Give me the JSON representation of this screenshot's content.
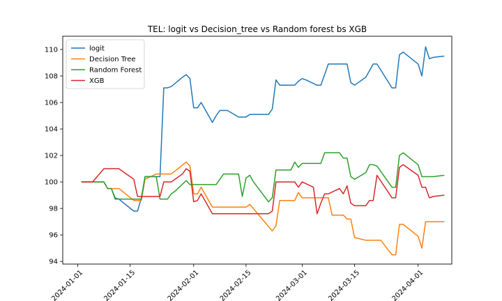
{
  "chart_data": {
    "type": "line",
    "title": "TEL: logit vs Decision_tree vs Random forest bs XGB",
    "xlabel": "",
    "ylabel": "",
    "x_range": [
      "2023-12-28",
      "2024-04-10"
    ],
    "ylim": [
      93.8,
      111.0
    ],
    "yticks": [
      94,
      96,
      98,
      100,
      102,
      104,
      106,
      108,
      110
    ],
    "xticks": [
      "2024-01-01",
      "2024-01-15",
      "2024-02-01",
      "2024-02-15",
      "2024-03-01",
      "2024-03-15",
      "2024-04-01"
    ],
    "grid": false,
    "legend_position": "top-left",
    "series": [
      {
        "name": "logit",
        "color": "#1f77b4",
        "points": [
          [
            "2024-01-02",
            100.0
          ],
          [
            "2024-01-05",
            100.0
          ],
          [
            "2024-01-08",
            100.0
          ],
          [
            "2024-01-09",
            99.5
          ],
          [
            "2024-01-10",
            99.5
          ],
          [
            "2024-01-11",
            98.8
          ],
          [
            "2024-01-12",
            98.7
          ],
          [
            "2024-01-16",
            97.8
          ],
          [
            "2024-01-17",
            97.8
          ],
          [
            "2024-01-18",
            98.8
          ],
          [
            "2024-01-19",
            100.4
          ],
          [
            "2024-01-22",
            100.4
          ],
          [
            "2024-01-23",
            100.4
          ],
          [
            "2024-01-24",
            107.1
          ],
          [
            "2024-01-25",
            107.1
          ],
          [
            "2024-01-26",
            107.2
          ],
          [
            "2024-01-29",
            107.9
          ],
          [
            "2024-01-30",
            108.1
          ],
          [
            "2024-01-31",
            107.8
          ],
          [
            "2024-02-01",
            105.6
          ],
          [
            "2024-02-02",
            105.6
          ],
          [
            "2024-02-03",
            106.0
          ],
          [
            "2024-02-06",
            104.5
          ],
          [
            "2024-02-07",
            105.0
          ],
          [
            "2024-02-08",
            105.4
          ],
          [
            "2024-02-09",
            105.4
          ],
          [
            "2024-02-10",
            105.4
          ],
          [
            "2024-02-13",
            104.9
          ],
          [
            "2024-02-14",
            104.9
          ],
          [
            "2024-02-15",
            104.9
          ],
          [
            "2024-02-16",
            105.1
          ],
          [
            "2024-02-20",
            105.1
          ],
          [
            "2024-02-21",
            105.1
          ],
          [
            "2024-02-22",
            105.5
          ],
          [
            "2024-02-23",
            107.7
          ],
          [
            "2024-02-24",
            107.3
          ],
          [
            "2024-02-27",
            107.3
          ],
          [
            "2024-02-28",
            107.3
          ],
          [
            "2024-02-29",
            107.6
          ],
          [
            "2024-03-01",
            107.8
          ],
          [
            "2024-03-02",
            107.7
          ],
          [
            "2024-03-05",
            107.3
          ],
          [
            "2024-03-06",
            107.3
          ],
          [
            "2024-03-07",
            108.1
          ],
          [
            "2024-03-08",
            108.9
          ],
          [
            "2024-03-09",
            108.9
          ],
          [
            "2024-03-12",
            108.9
          ],
          [
            "2024-03-13",
            108.9
          ],
          [
            "2024-03-14",
            107.5
          ],
          [
            "2024-03-15",
            107.3
          ],
          [
            "2024-03-18",
            107.9
          ],
          [
            "2024-03-19",
            108.4
          ],
          [
            "2024-03-20",
            108.9
          ],
          [
            "2024-03-21",
            108.9
          ],
          [
            "2024-03-25",
            107.1
          ],
          [
            "2024-03-26",
            107.1
          ],
          [
            "2024-03-27",
            109.6
          ],
          [
            "2024-03-28",
            109.8
          ],
          [
            "2024-04-01",
            108.9
          ],
          [
            "2024-04-02",
            108.0
          ],
          [
            "2024-04-03",
            110.2
          ],
          [
            "2024-04-04",
            109.3
          ],
          [
            "2024-04-05",
            109.4
          ],
          [
            "2024-04-08",
            109.5
          ]
        ]
      },
      {
        "name": "Decision Tree",
        "color": "#ff7f0e",
        "points": [
          [
            "2024-01-02",
            100.0
          ],
          [
            "2024-01-08",
            100.0
          ],
          [
            "2024-01-09",
            99.5
          ],
          [
            "2024-01-12",
            99.5
          ],
          [
            "2024-01-16",
            98.6
          ],
          [
            "2024-01-17",
            98.6
          ],
          [
            "2024-01-18",
            98.6
          ],
          [
            "2024-01-19",
            100.2
          ],
          [
            "2024-01-22",
            100.6
          ],
          [
            "2024-01-23",
            100.6
          ],
          [
            "2024-01-26",
            100.6
          ],
          [
            "2024-01-30",
            101.5
          ],
          [
            "2024-01-31",
            101.2
          ],
          [
            "2024-02-01",
            99.1
          ],
          [
            "2024-02-02",
            99.1
          ],
          [
            "2024-02-03",
            99.6
          ],
          [
            "2024-02-06",
            98.1
          ],
          [
            "2024-02-07",
            98.1
          ],
          [
            "2024-02-14",
            98.1
          ],
          [
            "2024-02-15",
            98.1
          ],
          [
            "2024-02-16",
            98.3
          ],
          [
            "2024-02-22",
            96.3
          ],
          [
            "2024-02-23",
            96.7
          ],
          [
            "2024-02-24",
            98.6
          ],
          [
            "2024-02-27",
            98.6
          ],
          [
            "2024-02-28",
            98.6
          ],
          [
            "2024-02-29",
            99.2
          ],
          [
            "2024-03-01",
            98.8
          ],
          [
            "2024-03-05",
            98.8
          ],
          [
            "2024-03-06",
            98.8
          ],
          [
            "2024-03-07",
            98.8
          ],
          [
            "2024-03-08",
            98.8
          ],
          [
            "2024-03-09",
            97.5
          ],
          [
            "2024-03-12",
            97.5
          ],
          [
            "2024-03-13",
            97.2
          ],
          [
            "2024-03-14",
            97.2
          ],
          [
            "2024-03-15",
            95.8
          ],
          [
            "2024-03-18",
            95.6
          ],
          [
            "2024-03-21",
            95.6
          ],
          [
            "2024-03-22",
            95.6
          ],
          [
            "2024-03-25",
            94.5
          ],
          [
            "2024-03-26",
            94.5
          ],
          [
            "2024-03-27",
            96.8
          ],
          [
            "2024-03-28",
            96.8
          ],
          [
            "2024-04-01",
            95.9
          ],
          [
            "2024-04-02",
            95.0
          ],
          [
            "2024-04-03",
            97.0
          ],
          [
            "2024-04-04",
            97.0
          ],
          [
            "2024-04-05",
            97.0
          ],
          [
            "2024-04-08",
            97.0
          ]
        ]
      },
      {
        "name": "Random Forest",
        "color": "#2ca02c",
        "points": [
          [
            "2024-01-02",
            100.0
          ],
          [
            "2024-01-08",
            100.0
          ],
          [
            "2024-01-09",
            99.5
          ],
          [
            "2024-01-10",
            99.5
          ],
          [
            "2024-01-11",
            98.7
          ],
          [
            "2024-01-12",
            98.7
          ],
          [
            "2024-01-16",
            98.7
          ],
          [
            "2024-01-18",
            98.7
          ],
          [
            "2024-01-19",
            100.4
          ],
          [
            "2024-01-22",
            100.4
          ],
          [
            "2024-01-23",
            98.7
          ],
          [
            "2024-01-25",
            98.7
          ],
          [
            "2024-01-26",
            99.1
          ],
          [
            "2024-01-27",
            99.3
          ],
          [
            "2024-01-30",
            100.1
          ],
          [
            "2024-01-31",
            99.8
          ],
          [
            "2024-02-01",
            99.8
          ],
          [
            "2024-02-07",
            99.8
          ],
          [
            "2024-02-09",
            100.6
          ],
          [
            "2024-02-13",
            100.6
          ],
          [
            "2024-02-14",
            98.9
          ],
          [
            "2024-02-15",
            100.3
          ],
          [
            "2024-02-16",
            100.5
          ],
          [
            "2024-02-17",
            100.0
          ],
          [
            "2024-02-21",
            98.5
          ],
          [
            "2024-02-22",
            98.8
          ],
          [
            "2024-02-23",
            100.9
          ],
          [
            "2024-02-24",
            100.9
          ],
          [
            "2024-02-27",
            100.9
          ],
          [
            "2024-02-28",
            101.5
          ],
          [
            "2024-02-29",
            101.1
          ],
          [
            "2024-03-01",
            101.4
          ],
          [
            "2024-03-05",
            101.4
          ],
          [
            "2024-03-06",
            101.4
          ],
          [
            "2024-03-07",
            102.2
          ],
          [
            "2024-03-08",
            102.2
          ],
          [
            "2024-03-11",
            102.2
          ],
          [
            "2024-03-12",
            101.8
          ],
          [
            "2024-03-13",
            101.8
          ],
          [
            "2024-03-14",
            100.4
          ],
          [
            "2024-03-15",
            100.2
          ],
          [
            "2024-03-18",
            100.7
          ],
          [
            "2024-03-19",
            101.3
          ],
          [
            "2024-03-20",
            101.3
          ],
          [
            "2024-03-21",
            101.2
          ],
          [
            "2024-03-25",
            99.6
          ],
          [
            "2024-03-26",
            99.6
          ],
          [
            "2024-03-27",
            102.0
          ],
          [
            "2024-03-28",
            102.2
          ],
          [
            "2024-04-01",
            101.3
          ],
          [
            "2024-04-02",
            100.4
          ],
          [
            "2024-04-05",
            100.4
          ],
          [
            "2024-04-08",
            100.5
          ]
        ]
      },
      {
        "name": "XGB",
        "color": "#d62728",
        "points": [
          [
            "2024-01-02",
            100.0
          ],
          [
            "2024-01-05",
            100.0
          ],
          [
            "2024-01-08",
            101.0
          ],
          [
            "2024-01-10",
            101.0
          ],
          [
            "2024-01-11",
            101.0
          ],
          [
            "2024-01-12",
            101.0
          ],
          [
            "2024-01-16",
            100.2
          ],
          [
            "2024-01-17",
            98.9
          ],
          [
            "2024-01-18",
            98.9
          ],
          [
            "2024-01-22",
            98.9
          ],
          [
            "2024-01-23",
            98.9
          ],
          [
            "2024-01-24",
            100.0
          ],
          [
            "2024-01-26",
            100.0
          ],
          [
            "2024-01-29",
            100.6
          ],
          [
            "2024-01-30",
            101.0
          ],
          [
            "2024-01-31",
            100.8
          ],
          [
            "2024-02-01",
            98.5
          ],
          [
            "2024-02-02",
            98.6
          ],
          [
            "2024-02-03",
            99.1
          ],
          [
            "2024-02-06",
            97.6
          ],
          [
            "2024-02-07",
            97.6
          ],
          [
            "2024-02-08",
            97.6
          ],
          [
            "2024-02-21",
            97.6
          ],
          [
            "2024-02-22",
            97.8
          ],
          [
            "2024-02-23",
            100.0
          ],
          [
            "2024-02-24",
            100.0
          ],
          [
            "2024-02-28",
            100.0
          ],
          [
            "2024-02-29",
            99.6
          ],
          [
            "2024-03-01",
            100.0
          ],
          [
            "2024-03-04",
            99.6
          ],
          [
            "2024-03-05",
            97.6
          ],
          [
            "2024-03-06",
            98.4
          ],
          [
            "2024-03-07",
            99.1
          ],
          [
            "2024-03-08",
            99.1
          ],
          [
            "2024-03-11",
            99.5
          ],
          [
            "2024-03-12",
            99.1
          ],
          [
            "2024-03-13",
            99.7
          ],
          [
            "2024-03-14",
            98.4
          ],
          [
            "2024-03-15",
            98.2
          ],
          [
            "2024-03-18",
            98.2
          ],
          [
            "2024-03-19",
            98.6
          ],
          [
            "2024-03-20",
            98.6
          ],
          [
            "2024-03-21",
            100.5
          ],
          [
            "2024-03-25",
            98.8
          ],
          [
            "2024-03-26",
            98.8
          ],
          [
            "2024-03-27",
            101.1
          ],
          [
            "2024-03-28",
            101.3
          ],
          [
            "2024-04-01",
            100.5
          ],
          [
            "2024-04-02",
            99.6
          ],
          [
            "2024-04-03",
            99.6
          ],
          [
            "2024-04-04",
            98.8
          ],
          [
            "2024-04-05",
            98.9
          ],
          [
            "2024-04-08",
            99.0
          ]
        ]
      }
    ]
  }
}
